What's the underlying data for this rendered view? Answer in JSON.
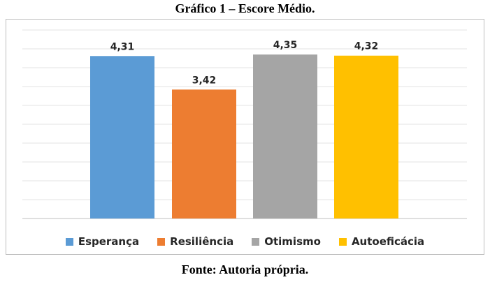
{
  "figure": {
    "title": "Gráfico 1 – Escore Médio.",
    "source": "Fonte: Autoria própria."
  },
  "chart_data": {
    "type": "bar",
    "categories": [
      "Esperança",
      "Resiliência",
      "Otimismo",
      "Autoeficácia"
    ],
    "values": [
      4.31,
      3.42,
      4.35,
      4.32
    ],
    "value_labels": [
      "4,31",
      "3,42",
      "4,35",
      "4,32"
    ],
    "colors": [
      "#5b9bd5",
      "#ed7d31",
      "#a5a5a5",
      "#ffc000"
    ],
    "ylim": [
      0,
      5
    ],
    "grid": true,
    "legend_position": "bottom",
    "title": "",
    "xlabel": "",
    "ylabel": ""
  }
}
